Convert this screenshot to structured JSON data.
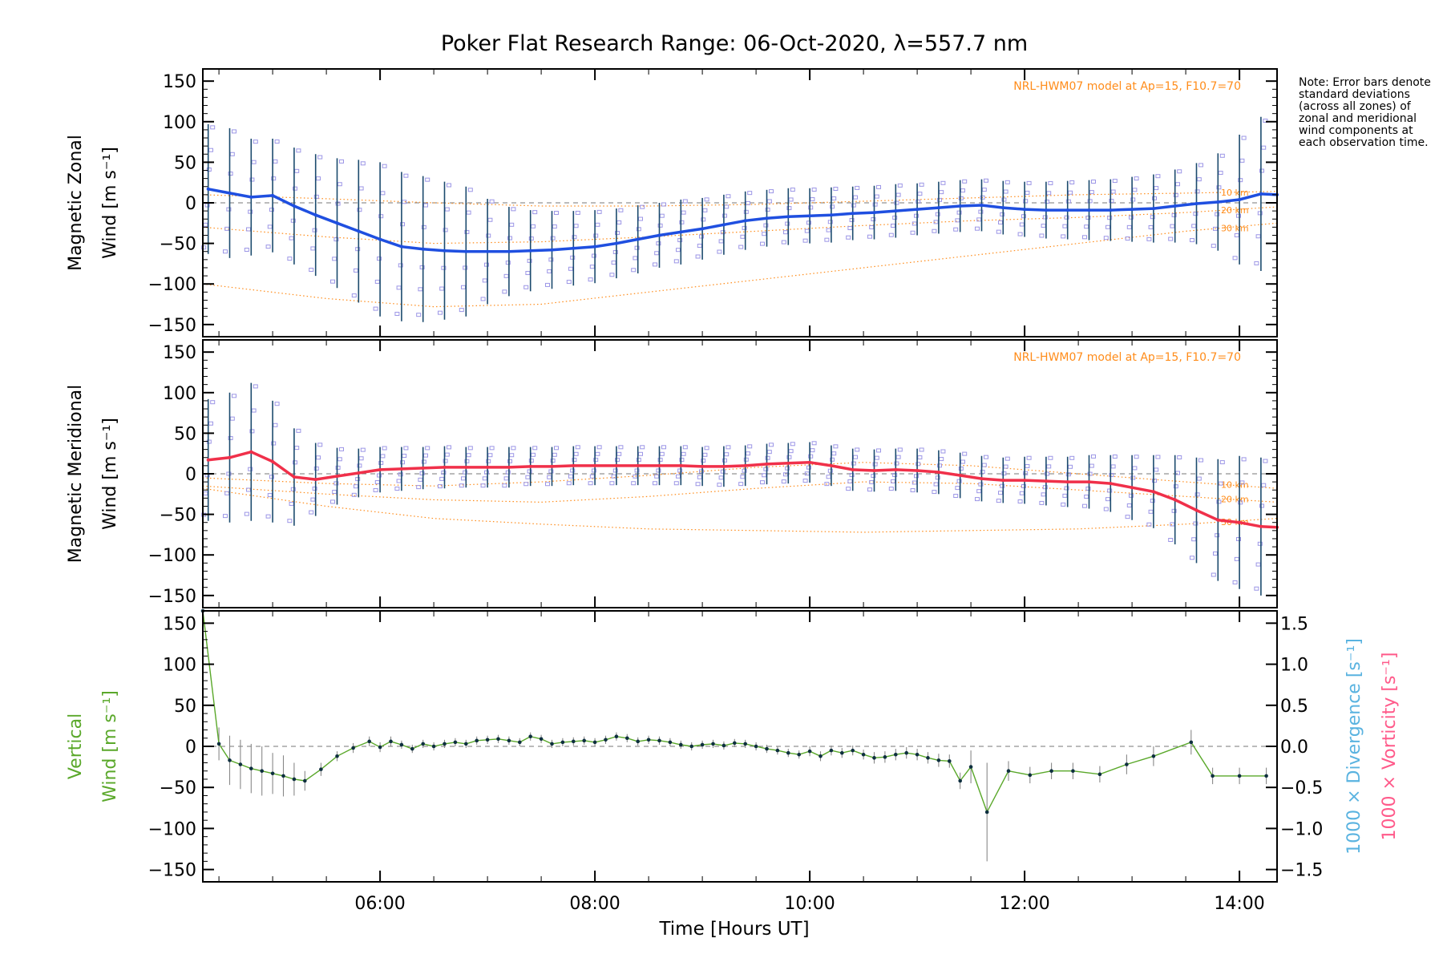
{
  "chart_data": {
    "type": "line",
    "title": "Poker Flat Research Range: 06-Oct-2020, λ=557.7 nm",
    "xlabel": "Time [Hours UT]",
    "xlim": [
      4.35,
      14.35
    ],
    "xticks": [
      6,
      8,
      10,
      12,
      14
    ],
    "xtick_labels": [
      "06:00",
      "08:00",
      "10:00",
      "12:00",
      "14:00"
    ],
    "note": "Note: Error bars denote standard deviations (across all zones) of zonal and meridional wind components at each observation time.",
    "model_label": "NRL-HWM07 model at Ap=15, F10.7=70",
    "altitude_labels": [
      "10 km",
      "20 km",
      "30 km"
    ],
    "colors": {
      "zonal": "#1f4fe0",
      "meridional": "#f0304a",
      "vertical": "#5aa82a",
      "model": "#ff8c1a",
      "scatter": "#9c96e6",
      "errorbar": "#1c4b6e",
      "divergence": "#5ab3e0",
      "vorticity": "#ff5a8a"
    },
    "panels": [
      {
        "ylabel_line1": "Magnetic Zonal",
        "ylabel_line2": "Wind [m s⁻¹]",
        "ylim": [
          -165,
          165
        ],
        "yticks": [
          -150,
          -100,
          -50,
          0,
          50,
          100,
          150
        ],
        "series": [
          {
            "x": [
              4.4,
              4.6,
              4.8,
              5.0,
              5.2,
              5.4,
              5.6,
              5.8,
              6.0,
              6.2,
              6.4,
              6.6,
              6.8,
              7.0,
              7.2,
              7.4,
              7.6,
              7.8,
              8.0,
              8.2,
              8.4,
              8.6,
              8.8,
              9.0,
              9.2,
              9.4,
              9.6,
              9.8,
              10.0,
              10.2,
              10.4,
              10.6,
              10.8,
              11.0,
              11.2,
              11.4,
              11.6,
              11.8,
              12.0,
              12.2,
              12.4,
              12.6,
              12.8,
              13.0,
              13.2,
              13.4,
              13.6,
              13.8,
              14.0,
              14.2,
              14.35
            ],
            "y": [
              17,
              12,
              7,
              9,
              -4,
              -15,
              -25,
              -35,
              -45,
              -54,
              -57,
              -59,
              -60,
              -60,
              -60,
              -59,
              -58,
              -56,
              -54,
              -50,
              -45,
              -40,
              -36,
              -32,
              -27,
              -22,
              -19,
              -17,
              -16,
              -15,
              -13,
              -12,
              -10,
              -8,
              -6,
              -4,
              -3,
              -6,
              -8,
              -9,
              -9,
              -9,
              -9,
              -8,
              -7,
              -4,
              -1,
              1,
              4,
              11,
              10
            ],
            "err": [
              80,
              80,
              72,
              70,
              72,
              75,
              80,
              88,
              95,
              92,
              90,
              85,
              80,
              65,
              55,
              50,
              48,
              46,
              45,
              43,
              42,
              40,
              40,
              38,
              37,
              36,
              35,
              35,
              34,
              34,
              33,
              33,
              33,
              32,
              32,
              32,
              32,
              33,
              34,
              35,
              36,
              37,
              38,
              40,
              42,
              45,
              50,
              60,
              80,
              95,
              95
            ]
          }
        ],
        "model": [
          {
            "x": [
              4.35,
              5.5,
              6.5,
              7.5,
              8.5,
              9.5,
              10.5,
              11.5,
              12.5,
              13.5,
              14.35
            ],
            "y": [
              10,
              5,
              0,
              -4,
              -4,
              -2,
              2,
              6,
              10,
              12,
              14
            ]
          },
          {
            "x": [
              4.35,
              5.5,
              6.5,
              7.5,
              8.5,
              9.5,
              10.5,
              11.5,
              12.5,
              13.5,
              14.35
            ],
            "y": [
              -30,
              -42,
              -50,
              -48,
              -42,
              -35,
              -28,
              -22,
              -18,
              -12,
              -5
            ]
          },
          {
            "x": [
              4.35,
              5.5,
              6.5,
              7.5,
              8.5,
              9.5,
              10.5,
              11.5,
              12.5,
              13.5,
              14.35
            ],
            "y": [
              -100,
              -118,
              -128,
              -125,
              -110,
              -95,
              -80,
              -65,
              -50,
              -35,
              -25
            ]
          }
        ]
      },
      {
        "ylabel_line1": "Magnetic Meridional",
        "ylabel_line2": "Wind [m s⁻¹]",
        "ylim": [
          -165,
          165
        ],
        "yticks": [
          -150,
          -100,
          -50,
          0,
          50,
          100,
          150
        ],
        "series": [
          {
            "x": [
              4.4,
              4.6,
              4.8,
              5.0,
              5.2,
              5.4,
              5.6,
              5.8,
              6.0,
              6.2,
              6.4,
              6.6,
              6.8,
              7.0,
              7.2,
              7.4,
              7.6,
              7.8,
              8.0,
              8.2,
              8.4,
              8.6,
              8.8,
              9.0,
              9.2,
              9.4,
              9.6,
              9.8,
              10.0,
              10.2,
              10.4,
              10.6,
              10.8,
              11.0,
              11.2,
              11.4,
              11.6,
              11.8,
              12.0,
              12.2,
              12.4,
              12.6,
              12.8,
              13.0,
              13.2,
              13.4,
              13.6,
              13.8,
              14.0,
              14.2,
              14.35
            ],
            "y": [
              17,
              20,
              27,
              15,
              -4,
              -7,
              -3,
              1,
              5,
              6,
              7,
              8,
              8,
              8,
              8,
              9,
              9,
              10,
              10,
              10,
              10,
              10,
              10,
              9,
              9,
              10,
              12,
              13,
              14,
              10,
              5,
              4,
              5,
              4,
              2,
              -2,
              -6,
              -8,
              -8,
              -9,
              -10,
              -10,
              -12,
              -17,
              -22,
              -32,
              -45,
              -57,
              -60,
              -65,
              -66
            ],
            "err": [
              75,
              80,
              85,
              75,
              60,
              45,
              35,
              30,
              28,
              27,
              26,
              26,
              25,
              25,
              25,
              24,
              24,
              24,
              24,
              24,
              24,
              24,
              24,
              24,
              25,
              25,
              25,
              25,
              25,
              25,
              26,
              26,
              26,
              27,
              27,
              28,
              28,
              28,
              29,
              30,
              31,
              33,
              35,
              40,
              45,
              55,
              65,
              75,
              82,
              85,
              85
            ]
          }
        ],
        "model": [
          {
            "x": [
              4.35,
              5.5,
              6.5,
              7.5,
              8.5,
              9.5,
              10.5,
              11.5,
              12.5,
              13.5,
              14.35
            ],
            "y": [
              -5,
              -12,
              -15,
              -10,
              -2,
              8,
              14,
              10,
              0,
              -10,
              -18
            ]
          },
          {
            "x": [
              4.35,
              5.5,
              6.5,
              7.5,
              8.5,
              9.5,
              10.5,
              11.5,
              12.5,
              13.5,
              14.35
            ],
            "y": [
              -15,
              -25,
              -32,
              -35,
              -28,
              -18,
              -10,
              -12,
              -20,
              -28,
              -35
            ]
          },
          {
            "x": [
              4.35,
              5.5,
              6.5,
              7.5,
              8.5,
              9.5,
              10.5,
              11.5,
              12.5,
              13.5,
              14.35
            ],
            "y": [
              -18,
              -40,
              -55,
              -62,
              -68,
              -70,
              -72,
              -70,
              -68,
              -62,
              -55
            ]
          }
        ]
      },
      {
        "ylabel_line1": "Vertical",
        "ylabel_line2": "Wind [m s⁻¹]",
        "ylim": [
          -165,
          165
        ],
        "yticks": [
          -150,
          -100,
          -50,
          0,
          50,
          100,
          150
        ],
        "y2_label_divergence": "1000 × Divergence [s⁻¹]",
        "y2_label_vorticity": "1000 × Vorticity [s⁻¹]",
        "y2lim": [
          -1.65,
          1.65
        ],
        "y2ticks": [
          -1.5,
          -1.0,
          -0.5,
          0.0,
          0.5,
          1.0,
          1.5
        ],
        "y2tick_labels": [
          "−1.5",
          "−1.0",
          "−0.5",
          "0.0",
          "0.5",
          "1.0",
          "1.5"
        ],
        "series": [
          {
            "x": [
              4.35,
              4.5,
              4.6,
              4.7,
              4.8,
              4.9,
              5.0,
              5.1,
              5.2,
              5.3,
              5.45,
              5.6,
              5.75,
              5.9,
              6.0,
              6.1,
              6.2,
              6.3,
              6.4,
              6.5,
              6.6,
              6.7,
              6.8,
              6.9,
              7.0,
              7.1,
              7.2,
              7.3,
              7.4,
              7.5,
              7.6,
              7.7,
              7.8,
              7.9,
              8.0,
              8.1,
              8.2,
              8.3,
              8.4,
              8.5,
              8.6,
              8.7,
              8.8,
              8.9,
              9.0,
              9.1,
              9.2,
              9.3,
              9.4,
              9.5,
              9.6,
              9.7,
              9.8,
              9.9,
              10.0,
              10.1,
              10.2,
              10.3,
              10.4,
              10.5,
              10.6,
              10.7,
              10.8,
              10.9,
              11.0,
              11.1,
              11.2,
              11.3,
              11.4,
              11.5,
              11.65,
              11.85,
              12.05,
              12.25,
              12.45,
              12.7,
              12.95,
              13.2,
              13.55,
              13.75,
              14.0,
              14.25
            ],
            "y": [
              165,
              3,
              -17,
              -22,
              -27,
              -30,
              -33,
              -36,
              -40,
              -42,
              -28,
              -12,
              -2,
              6,
              -1,
              6,
              2,
              -3,
              3,
              0,
              3,
              5,
              3,
              7,
              8,
              9,
              7,
              5,
              12,
              9,
              3,
              5,
              6,
              7,
              5,
              8,
              12,
              10,
              6,
              8,
              7,
              5,
              2,
              0,
              2,
              3,
              1,
              4,
              3,
              0,
              -3,
              -5,
              -8,
              -10,
              -6,
              -12,
              -5,
              -8,
              -5,
              -10,
              -14,
              -13,
              -10,
              -8,
              -10,
              -14,
              -17,
              -18,
              -42,
              -25,
              -80,
              -30,
              -35,
              -30,
              -30,
              -34,
              -22,
              -12,
              5,
              -36,
              -36,
              -36
            ],
            "err": [
              0,
              20,
              30,
              30,
              30,
              30,
              25,
              25,
              20,
              12,
              8,
              6,
              6,
              6,
              6,
              6,
              5,
              5,
              5,
              5,
              5,
              5,
              5,
              5,
              5,
              5,
              5,
              5,
              5,
              5,
              5,
              5,
              5,
              5,
              5,
              5,
              5,
              5,
              5,
              5,
              5,
              5,
              5,
              5,
              5,
              5,
              5,
              5,
              5,
              5,
              5,
              5,
              5,
              5,
              6,
              6,
              6,
              6,
              6,
              6,
              7,
              7,
              7,
              7,
              7,
              7,
              8,
              8,
              10,
              20,
              60,
              12,
              10,
              10,
              10,
              10,
              12,
              12,
              15,
              10,
              10,
              10
            ]
          }
        ]
      }
    ]
  }
}
